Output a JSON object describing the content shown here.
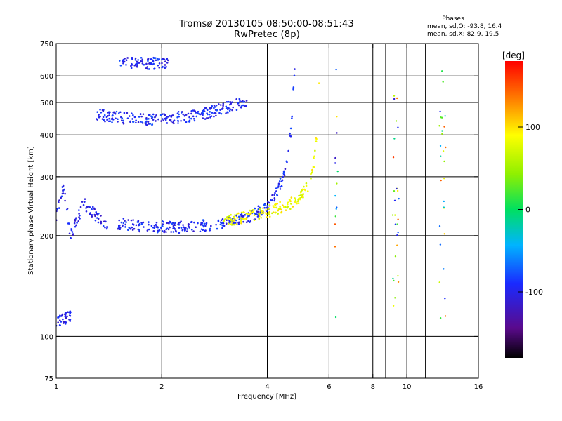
{
  "chart_data": {
    "type": "scatter",
    "title": "Tromsø 20130105 08:50:00-08:51:43",
    "subtitle": "RwPretec (8p)",
    "xlabel": "Frequency [MHz]",
    "ylabel": "Stationary phase Virtual Height [km]",
    "x_scale": "log",
    "y_scale": "log",
    "xlim": [
      1,
      16
    ],
    "ylim": [
      75,
      750
    ],
    "x_ticks": [
      1,
      2,
      4,
      6,
      8,
      10,
      16
    ],
    "y_ticks": [
      75,
      100,
      200,
      300,
      400,
      500,
      600,
      750
    ],
    "x_gridlines": [
      2,
      4,
      6,
      8,
      10
    ],
    "y_gridlines": [
      100,
      200,
      300,
      400,
      500,
      600
    ],
    "grid": true,
    "colorbar": {
      "label": "[deg]",
      "range": [
        -180,
        180
      ],
      "ticks": [
        -100,
        0,
        100
      ],
      "colormap": "rainbow (black-purple-blue-cyan-green-yellow-orange-red)"
    },
    "stats": {
      "header": "Phases",
      "o_line": "mean, sd,O: -93.8, 16.4",
      "x_line": "mean, sd,X:  82.9, 19.5"
    },
    "series": [
      {
        "trace": "O-mode F-layer trace (blue)",
        "phase_deg": -95,
        "points": [
          {
            "x": 1.5,
            "y": 218
          },
          {
            "x": 1.8,
            "y": 213
          },
          {
            "x": 2.2,
            "y": 212
          },
          {
            "x": 2.6,
            "y": 214
          },
          {
            "x": 3.0,
            "y": 218
          },
          {
            "x": 3.5,
            "y": 226
          },
          {
            "x": 3.9,
            "y": 240
          },
          {
            "x": 4.2,
            "y": 262
          },
          {
            "x": 4.45,
            "y": 300
          },
          {
            "x": 4.6,
            "y": 360
          },
          {
            "x": 4.7,
            "y": 440
          },
          {
            "x": 4.76,
            "y": 560
          },
          {
            "x": 4.8,
            "y": 640
          }
        ]
      },
      {
        "trace": "X-mode F-layer trace (yellow-green)",
        "phase_deg": 85,
        "points": [
          {
            "x": 3.0,
            "y": 221
          },
          {
            "x": 3.5,
            "y": 228
          },
          {
            "x": 4.0,
            "y": 236
          },
          {
            "x": 4.6,
            "y": 248
          },
          {
            "x": 5.0,
            "y": 262
          },
          {
            "x": 5.3,
            "y": 290
          },
          {
            "x": 5.45,
            "y": 340
          },
          {
            "x": 5.55,
            "y": 420
          },
          {
            "x": 5.6,
            "y": 500
          },
          {
            "x": 5.62,
            "y": 600
          }
        ]
      },
      {
        "trace": "Low-frequency spread echoes (blue)",
        "phase_deg": -100,
        "points": [
          {
            "x": 1.0,
            "y": 230
          },
          {
            "x": 1.05,
            "y": 280
          },
          {
            "x": 1.1,
            "y": 200
          },
          {
            "x": 1.2,
            "y": 250
          },
          {
            "x": 1.3,
            "y": 230
          },
          {
            "x": 1.4,
            "y": 210
          }
        ]
      },
      {
        "trace": "Second-hop echoes near 440-470 km (blue)",
        "phase_deg": -95,
        "points": [
          {
            "x": 1.3,
            "y": 460
          },
          {
            "x": 1.7,
            "y": 445
          },
          {
            "x": 2.0,
            "y": 445
          },
          {
            "x": 2.6,
            "y": 460
          },
          {
            "x": 3.0,
            "y": 480
          },
          {
            "x": 3.5,
            "y": 505
          }
        ]
      },
      {
        "trace": "Echoes near 650 km (blue)",
        "phase_deg": -95,
        "points": [
          {
            "x": 1.5,
            "y": 655
          },
          {
            "x": 2.1,
            "y": 655
          }
        ]
      },
      {
        "trace": "Low echoes near 110 km (blue)",
        "phase_deg": -100,
        "points": [
          {
            "x": 1.0,
            "y": 110
          },
          {
            "x": 1.1,
            "y": 115
          }
        ]
      },
      {
        "trace": "Vertical interference columns (mixed phase)",
        "phase_deg": null,
        "points": [
          {
            "x": 6.3,
            "y": 300
          },
          {
            "x": 9.2,
            "y": 300
          },
          {
            "x": 9.4,
            "y": 400
          },
          {
            "x": 12.5,
            "y": 300
          },
          {
            "x": 12.8,
            "y": 500
          }
        ]
      }
    ]
  }
}
